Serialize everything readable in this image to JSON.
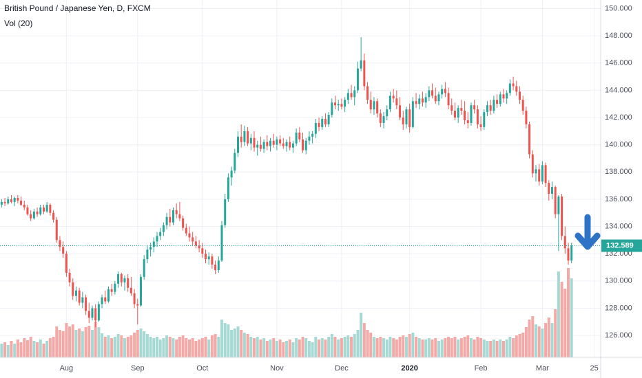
{
  "chart_data": {
    "type": "candlestick",
    "title": "British Pound / Japanese Yen, D, FXCM",
    "subtitle": "Vol (20)",
    "up_color": "#26a69a",
    "down_color": "#ef5350",
    "volume_up_color": "#a6d9d3",
    "volume_down_color": "#f5a9a7",
    "ylim": [
      124.39,
      150.63
    ],
    "yticks": [
      {
        "value": 126,
        "label": "126.000"
      },
      {
        "value": 128,
        "label": "128.000"
      },
      {
        "value": 130,
        "label": "130.000"
      },
      {
        "value": 132,
        "label": "132.000"
      },
      {
        "value": 134,
        "label": "134.000"
      },
      {
        "value": 136,
        "label": "136.000"
      },
      {
        "value": 138,
        "label": "138.000"
      },
      {
        "value": 140,
        "label": "140.000"
      },
      {
        "value": 142,
        "label": "142.000"
      },
      {
        "value": 144,
        "label": "144.000"
      },
      {
        "value": 146,
        "label": "146.000"
      },
      {
        "value": 148,
        "label": "148.000"
      },
      {
        "value": 150,
        "label": "150.000"
      }
    ],
    "xlim": [
      -0.5,
      185
    ],
    "xticks": [
      {
        "value": 20,
        "label": "Aug"
      },
      {
        "value": 42,
        "label": "Sep"
      },
      {
        "value": 62,
        "label": "Oct"
      },
      {
        "value": 85,
        "label": "Nov"
      },
      {
        "value": 105,
        "label": "Dec"
      },
      {
        "value": 126,
        "label": "2020"
      },
      {
        "value": 148,
        "label": "Feb"
      },
      {
        "value": 167,
        "label": "Mar"
      },
      {
        "value": 183,
        "label": "25"
      }
    ],
    "volume_lim": [
      0,
      520
    ],
    "grid": true,
    "last_price": 132.589,
    "candles": [
      [
        135.6,
        136.0,
        135.4,
        135.8,
        20
      ],
      [
        135.8,
        136.1,
        135.5,
        135.7,
        22
      ],
      [
        135.7,
        136.2,
        135.6,
        136.0,
        18
      ],
      [
        136.0,
        136.3,
        135.7,
        135.8,
        24
      ],
      [
        135.8,
        136.2,
        135.5,
        136.1,
        20
      ],
      [
        136.1,
        136.3,
        135.7,
        135.9,
        26
      ],
      [
        135.9,
        136.2,
        135.5,
        135.6,
        22
      ],
      [
        135.6,
        135.9,
        135.2,
        135.4,
        28
      ],
      [
        135.4,
        135.6,
        134.8,
        134.9,
        25
      ],
      [
        134.9,
        135.2,
        134.4,
        134.6,
        30
      ],
      [
        134.6,
        135.3,
        134.5,
        135.1,
        24
      ],
      [
        135.1,
        135.4,
        134.7,
        134.9,
        22
      ],
      [
        134.9,
        135.6,
        134.8,
        135.4,
        26
      ],
      [
        135.4,
        135.6,
        134.9,
        135.1,
        20
      ],
      [
        135.1,
        135.8,
        135.0,
        135.6,
        24
      ],
      [
        135.6,
        135.7,
        134.8,
        135.0,
        28
      ],
      [
        135.0,
        135.2,
        134.3,
        134.5,
        30
      ],
      [
        134.5,
        134.7,
        132.8,
        133.0,
        45
      ],
      [
        133.0,
        133.3,
        132.2,
        132.5,
        40
      ],
      [
        132.5,
        132.9,
        131.7,
        132.0,
        38
      ],
      [
        132.0,
        132.2,
        130.3,
        130.6,
        50
      ],
      [
        130.6,
        130.9,
        129.6,
        129.9,
        45
      ],
      [
        129.9,
        130.2,
        128.6,
        128.9,
        48
      ],
      [
        128.9,
        129.6,
        128.5,
        129.3,
        40
      ],
      [
        129.3,
        129.5,
        128.2,
        128.4,
        42
      ],
      [
        128.4,
        129.2,
        128.0,
        128.8,
        38
      ],
      [
        128.8,
        129.0,
        127.5,
        127.8,
        44
      ],
      [
        127.8,
        128.4,
        126.9,
        127.3,
        46
      ],
      [
        127.3,
        128.2,
        127.1,
        128.0,
        40
      ],
      [
        128.0,
        128.3,
        126.6,
        127.1,
        52
      ],
      [
        127.1,
        128.5,
        127.0,
        128.3,
        44
      ],
      [
        128.3,
        129.0,
        128.0,
        128.8,
        35
      ],
      [
        128.8,
        129.3,
        128.3,
        128.5,
        30
      ],
      [
        128.5,
        129.6,
        128.4,
        129.4,
        32
      ],
      [
        129.4,
        129.8,
        128.9,
        129.2,
        28
      ],
      [
        129.2,
        130.0,
        129.0,
        129.8,
        30
      ],
      [
        129.8,
        130.7,
        129.5,
        130.5,
        34
      ],
      [
        130.5,
        130.6,
        129.6,
        129.9,
        32
      ],
      [
        129.9,
        130.4,
        129.3,
        130.2,
        28
      ],
      [
        130.2,
        130.5,
        129.2,
        129.5,
        30
      ],
      [
        129.5,
        130.3,
        128.9,
        129.1,
        32
      ],
      [
        129.1,
        129.4,
        128.0,
        128.3,
        36
      ],
      [
        128.3,
        128.7,
        126.8,
        128.2,
        40
      ],
      [
        128.2,
        130.5,
        128.1,
        130.3,
        42
      ],
      [
        130.3,
        131.9,
        130.1,
        131.6,
        38
      ],
      [
        131.6,
        132.6,
        131.3,
        132.3,
        34
      ],
      [
        132.3,
        132.8,
        131.8,
        132.5,
        30
      ],
      [
        132.5,
        133.2,
        132.1,
        132.9,
        28
      ],
      [
        132.9,
        133.6,
        132.5,
        133.3,
        30
      ],
      [
        133.3,
        133.9,
        133.0,
        133.6,
        26
      ],
      [
        133.6,
        134.3,
        133.3,
        134.1,
        28
      ],
      [
        134.1,
        135.0,
        133.8,
        134.7,
        32
      ],
      [
        134.7,
        135.3,
        134.0,
        134.3,
        30
      ],
      [
        134.3,
        135.4,
        134.1,
        135.2,
        28
      ],
      [
        135.2,
        135.7,
        134.6,
        134.9,
        26
      ],
      [
        134.9,
        135.8,
        134.4,
        134.6,
        30
      ],
      [
        134.6,
        134.8,
        133.7,
        133.9,
        32
      ],
      [
        133.9,
        134.2,
        133.3,
        133.5,
        28
      ],
      [
        133.5,
        134.0,
        132.9,
        133.2,
        26
      ],
      [
        133.2,
        133.6,
        132.6,
        132.9,
        28
      ],
      [
        132.9,
        133.3,
        132.4,
        132.6,
        24
      ],
      [
        132.6,
        133.0,
        132.1,
        132.4,
        26
      ],
      [
        132.4,
        132.8,
        131.7,
        132.0,
        28
      ],
      [
        132.0,
        132.3,
        131.3,
        131.6,
        30
      ],
      [
        131.6,
        132.1,
        131.2,
        131.8,
        26
      ],
      [
        131.8,
        132.0,
        130.9,
        131.2,
        32
      ],
      [
        131.2,
        131.5,
        130.5,
        130.8,
        34
      ],
      [
        130.8,
        131.8,
        130.6,
        131.5,
        30
      ],
      [
        131.5,
        134.4,
        131.4,
        134.1,
        55
      ],
      [
        134.1,
        136.4,
        133.9,
        136.0,
        50
      ],
      [
        136.0,
        137.9,
        135.8,
        137.6,
        48
      ],
      [
        137.6,
        138.4,
        137.0,
        138.1,
        40
      ],
      [
        138.1,
        139.7,
        137.9,
        139.4,
        42
      ],
      [
        139.4,
        141.0,
        139.1,
        140.6,
        45
      ],
      [
        140.6,
        141.5,
        139.8,
        140.2,
        40
      ],
      [
        140.2,
        141.4,
        139.9,
        141.0,
        36
      ],
      [
        141.0,
        141.3,
        139.9,
        140.1,
        34
      ],
      [
        140.1,
        140.8,
        139.6,
        140.5,
        30
      ],
      [
        140.5,
        141.0,
        139.5,
        139.8,
        28
      ],
      [
        139.8,
        140.3,
        139.2,
        140.0,
        30
      ],
      [
        140.0,
        140.6,
        139.5,
        139.7,
        26
      ],
      [
        139.7,
        140.4,
        139.4,
        140.2,
        28
      ],
      [
        140.2,
        140.7,
        139.6,
        139.9,
        24
      ],
      [
        139.9,
        140.5,
        139.5,
        140.3,
        26
      ],
      [
        140.3,
        140.8,
        139.8,
        140.0,
        28
      ],
      [
        140.0,
        140.6,
        139.6,
        140.4,
        24
      ],
      [
        140.4,
        140.7,
        139.9,
        140.1,
        26
      ],
      [
        140.1,
        140.5,
        139.7,
        139.9,
        22
      ],
      [
        139.9,
        140.4,
        139.5,
        140.2,
        24
      ],
      [
        140.2,
        140.6,
        139.6,
        139.8,
        26
      ],
      [
        139.8,
        140.3,
        139.4,
        140.1,
        22
      ],
      [
        140.1,
        141.2,
        139.9,
        140.9,
        28
      ],
      [
        140.9,
        141.3,
        140.2,
        140.4,
        26
      ],
      [
        140.4,
        140.9,
        139.4,
        139.6,
        30
      ],
      [
        139.6,
        140.5,
        139.3,
        140.3,
        28
      ],
      [
        140.3,
        141.0,
        140.0,
        140.6,
        24
      ],
      [
        140.6,
        141.0,
        140.1,
        140.8,
        22
      ],
      [
        140.8,
        141.9,
        140.5,
        141.6,
        30
      ],
      [
        141.6,
        142.0,
        141.0,
        141.3,
        26
      ],
      [
        141.3,
        142.1,
        141.1,
        141.9,
        28
      ],
      [
        141.9,
        142.3,
        141.3,
        141.5,
        26
      ],
      [
        141.5,
        142.4,
        141.3,
        142.2,
        30
      ],
      [
        142.2,
        143.4,
        142.0,
        143.1,
        34
      ],
      [
        143.1,
        143.6,
        142.6,
        142.9,
        30
      ],
      [
        142.9,
        143.3,
        142.5,
        143.0,
        26
      ],
      [
        143.0,
        143.4,
        142.6,
        142.8,
        28
      ],
      [
        142.8,
        143.5,
        142.4,
        143.3,
        30
      ],
      [
        143.3,
        144.1,
        143.0,
        143.8,
        32
      ],
      [
        143.8,
        144.4,
        143.3,
        143.5,
        30
      ],
      [
        143.5,
        144.3,
        142.9,
        144.0,
        34
      ],
      [
        144.0,
        146.1,
        143.8,
        145.6,
        40
      ],
      [
        145.6,
        147.9,
        145.4,
        146.2,
        65
      ],
      [
        146.2,
        146.7,
        144.0,
        144.3,
        50
      ],
      [
        144.3,
        144.6,
        143.0,
        143.3,
        40
      ],
      [
        143.3,
        143.9,
        142.3,
        142.6,
        36
      ],
      [
        142.6,
        143.5,
        142.2,
        143.2,
        30
      ],
      [
        143.2,
        143.4,
        142.0,
        142.3,
        28
      ],
      [
        142.3,
        142.6,
        141.3,
        141.6,
        30
      ],
      [
        141.6,
        142.4,
        141.2,
        142.1,
        28
      ],
      [
        142.1,
        142.9,
        141.8,
        142.6,
        26
      ],
      [
        142.6,
        143.9,
        142.4,
        143.6,
        30
      ],
      [
        143.6,
        144.1,
        143.1,
        143.4,
        28
      ],
      [
        143.4,
        144.0,
        142.6,
        142.9,
        26
      ],
      [
        142.9,
        143.5,
        141.8,
        142.0,
        30
      ],
      [
        142.0,
        142.5,
        141.1,
        141.5,
        32
      ],
      [
        141.5,
        142.8,
        141.2,
        142.6,
        30
      ],
      [
        142.6,
        143.0,
        140.9,
        141.3,
        34
      ],
      [
        141.3,
        143.5,
        141.2,
        143.2,
        36
      ],
      [
        143.2,
        143.8,
        142.7,
        143.0,
        30
      ],
      [
        143.0,
        143.7,
        142.6,
        143.4,
        28
      ],
      [
        143.4,
        143.9,
        142.8,
        143.1,
        26
      ],
      [
        143.1,
        143.8,
        142.7,
        143.5,
        26
      ],
      [
        143.5,
        144.3,
        143.2,
        144.0,
        28
      ],
      [
        144.0,
        144.5,
        143.4,
        143.6,
        26
      ],
      [
        143.6,
        144.2,
        143.0,
        143.2,
        28
      ],
      [
        143.2,
        143.9,
        142.9,
        143.7,
        24
      ],
      [
        143.7,
        144.4,
        143.4,
        144.1,
        26
      ],
      [
        144.1,
        144.6,
        143.5,
        143.8,
        28
      ],
      [
        143.8,
        144.2,
        142.6,
        142.9,
        30
      ],
      [
        142.9,
        143.4,
        142.2,
        142.5,
        28
      ],
      [
        142.5,
        143.1,
        141.8,
        142.0,
        30
      ],
      [
        142.0,
        142.9,
        141.6,
        142.7,
        26
      ],
      [
        142.7,
        143.3,
        142.2,
        142.5,
        28
      ],
      [
        142.5,
        143.2,
        141.5,
        141.8,
        30
      ],
      [
        141.8,
        142.4,
        141.2,
        141.6,
        32
      ],
      [
        141.6,
        143.1,
        141.4,
        142.9,
        28
      ],
      [
        142.9,
        143.3,
        142.3,
        142.6,
        26
      ],
      [
        142.6,
        142.9,
        141.2,
        141.5,
        30
      ],
      [
        141.5,
        142.1,
        141.0,
        141.3,
        28
      ],
      [
        141.3,
        142.6,
        141.1,
        142.4,
        26
      ],
      [
        142.4,
        143.2,
        142.1,
        142.9,
        24
      ],
      [
        142.9,
        143.3,
        142.2,
        142.5,
        24
      ],
      [
        142.5,
        143.6,
        142.3,
        143.3,
        26
      ],
      [
        143.3,
        143.7,
        142.7,
        143.0,
        24
      ],
      [
        143.0,
        143.9,
        142.8,
        143.7,
        26
      ],
      [
        143.7,
        144.1,
        143.1,
        143.4,
        24
      ],
      [
        143.4,
        144.0,
        143.0,
        143.8,
        26
      ],
      [
        143.8,
        144.8,
        143.6,
        144.5,
        30
      ],
      [
        144.5,
        145.0,
        144.0,
        144.3,
        28
      ],
      [
        144.3,
        144.7,
        143.6,
        143.9,
        32
      ],
      [
        143.9,
        144.3,
        143.0,
        143.3,
        34
      ],
      [
        143.3,
        143.6,
        142.2,
        142.5,
        36
      ],
      [
        142.5,
        142.8,
        141.2,
        141.5,
        44
      ],
      [
        141.5,
        141.7,
        139.0,
        139.3,
        55
      ],
      [
        139.3,
        139.6,
        137.6,
        137.9,
        60
      ],
      [
        137.9,
        138.5,
        137.3,
        138.2,
        48
      ],
      [
        138.2,
        138.6,
        137.0,
        137.3,
        45
      ],
      [
        137.3,
        138.8,
        137.1,
        138.5,
        42
      ],
      [
        138.5,
        138.7,
        136.9,
        137.2,
        50
      ],
      [
        137.2,
        137.4,
        135.9,
        136.4,
        58
      ],
      [
        136.4,
        137.3,
        136.0,
        136.9,
        50
      ],
      [
        136.9,
        137.0,
        134.6,
        134.9,
        70
      ],
      [
        134.9,
        136.3,
        132.2,
        136.2,
        125
      ],
      [
        136.2,
        136.4,
        133.0,
        133.3,
        110
      ],
      [
        133.3,
        134.0,
        132.0,
        132.4,
        100
      ],
      [
        132.4,
        132.8,
        131.2,
        131.5,
        130
      ],
      [
        131.5,
        132.8,
        131.3,
        132.589,
        115
      ]
    ]
  }
}
